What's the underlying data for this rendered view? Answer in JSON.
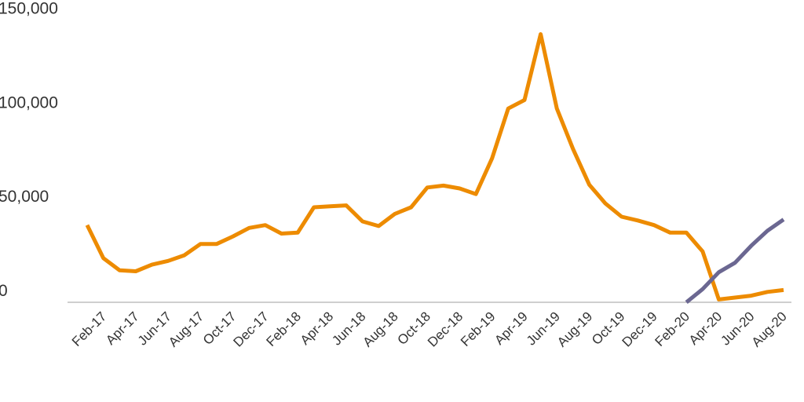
{
  "chart_data": {
    "type": "line",
    "title": "",
    "xlabel": "",
    "ylabel": "",
    "ylim": [
      0,
      150000
    ],
    "grid": false,
    "x": [
      "Jan-17",
      "Feb-17",
      "Mar-17",
      "Apr-17",
      "May-17",
      "Jun-17",
      "Jul-17",
      "Aug-17",
      "Sep-17",
      "Oct-17",
      "Nov-17",
      "Dec-17",
      "Jan-18",
      "Feb-18",
      "Mar-18",
      "Apr-18",
      "May-18",
      "Jun-18",
      "Jul-18",
      "Aug-18",
      "Sep-18",
      "Oct-18",
      "Nov-18",
      "Dec-18",
      "Jan-19",
      "Feb-19",
      "Mar-19",
      "Apr-19",
      "May-19",
      "Jun-19",
      "Jul-19",
      "Aug-19",
      "Sep-19",
      "Oct-19",
      "Nov-19",
      "Dec-19",
      "Jan-20",
      "Feb-20",
      "Mar-20",
      "Apr-20",
      "May-20",
      "Jun-20",
      "Jul-20",
      "Aug-20"
    ],
    "x_tick_labels": [
      "Feb-17",
      "Apr-17",
      "Jun-17",
      "Aug-17",
      "Oct-17",
      "Dec-17",
      "Feb-18",
      "Apr-18",
      "Jun-18",
      "Aug-18",
      "Oct-18",
      "Dec-18",
      "Feb-19",
      "Apr-19",
      "Jun-19",
      "Aug-19",
      "Oct-19",
      "Dec-19",
      "Feb-20",
      "Apr-20",
      "Jun-20",
      "Aug-20"
    ],
    "y_tick_labels": [
      "0",
      "50,000",
      "100,000",
      "150,000"
    ],
    "y_ticks": [
      0,
      50000,
      100000,
      150000
    ],
    "series": [
      {
        "color": "#ed8b00",
        "values": [
          41000,
          23500,
          17000,
          16500,
          20000,
          22000,
          25000,
          31000,
          31000,
          35000,
          39500,
          41000,
          36500,
          37000,
          50500,
          51000,
          51500,
          43000,
          40500,
          47000,
          50500,
          61000,
          62000,
          60500,
          57500,
          76500,
          103000,
          107500,
          142500,
          103000,
          81500,
          62500,
          52500,
          45500,
          43500,
          41000,
          37000,
          37000,
          27000,
          1500,
          2500,
          3500,
          5500,
          6500
        ]
      },
      {
        "color": "#6b6791",
        "values": [
          null,
          null,
          null,
          null,
          null,
          null,
          null,
          null,
          null,
          null,
          null,
          null,
          null,
          null,
          null,
          null,
          null,
          null,
          null,
          null,
          null,
          null,
          null,
          null,
          null,
          null,
          null,
          null,
          null,
          null,
          null,
          null,
          null,
          null,
          null,
          null,
          null,
          0,
          7000,
          16000,
          21000,
          30000,
          38000,
          44000
        ]
      }
    ]
  }
}
